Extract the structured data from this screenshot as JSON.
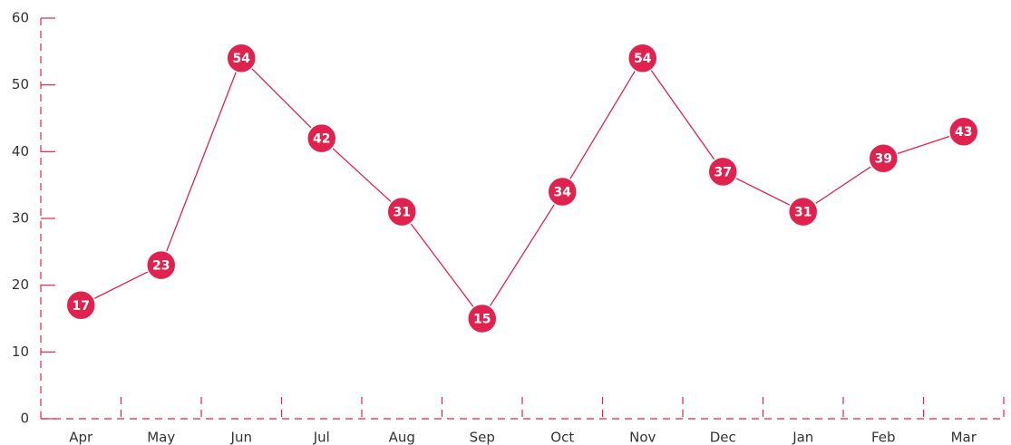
{
  "chart_data": {
    "type": "line",
    "categories": [
      "Apr",
      "May",
      "Jun",
      "Jul",
      "Aug",
      "Sep",
      "Oct",
      "Nov",
      "Dec",
      "Jan",
      "Feb",
      "Mar"
    ],
    "series": [
      {
        "color": "#e0234e",
        "values": [
          17,
          23,
          54,
          42,
          31,
          15,
          34,
          54,
          37,
          31,
          39,
          43
        ]
      }
    ],
    "ylim": [
      0,
      60
    ],
    "yticks": [
      0,
      10,
      20,
      30,
      40,
      50,
      60
    ]
  }
}
